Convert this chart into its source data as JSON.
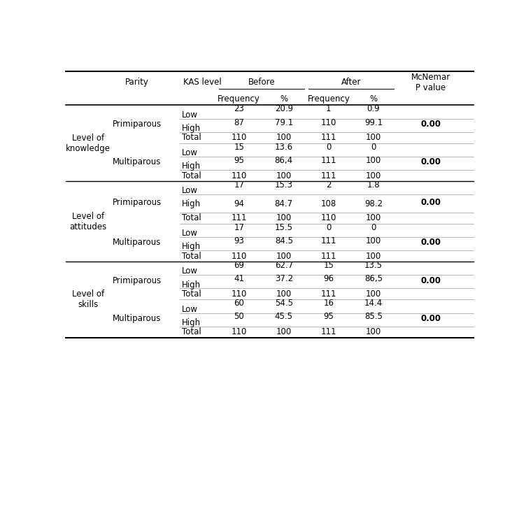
{
  "sections": [
    {
      "label": "Level of\nknowledge",
      "groups": [
        {
          "parity": "Primiparous",
          "rows": [
            {
              "kas": "Low",
              "bf": "23",
              "bpct": "20.9",
              "af": "1",
              "apct": "0.9",
              "style": "data_above_label"
            },
            {
              "kas": "High",
              "bf": "87",
              "bpct": "79.1",
              "af": "110",
              "apct": "99.1",
              "style": "data_above_label",
              "mcnemar": "0.00"
            },
            {
              "kas": "Total",
              "bf": "110",
              "bpct": "100",
              "af": "111",
              "apct": "100",
              "style": "total"
            }
          ]
        },
        {
          "parity": "Multiparous",
          "rows": [
            {
              "kas": "Low",
              "bf": "15",
              "bpct": "13.6",
              "af": "0",
              "apct": "0",
              "style": "data_above_label"
            },
            {
              "kas": "High",
              "bf": "95",
              "bpct": "86,4",
              "af": "111",
              "apct": "100",
              "style": "data_above_label",
              "mcnemar": "0.00"
            },
            {
              "kas": "Total",
              "bf": "110",
              "bpct": "100",
              "af": "111",
              "apct": "100",
              "style": "total"
            }
          ]
        }
      ]
    },
    {
      "label": "Level of\nattitudes",
      "groups": [
        {
          "parity": "Primiparous",
          "rows": [
            {
              "kas": "Low",
              "bf": "17",
              "bpct": "15.3",
              "af": "2",
              "apct": "1.8",
              "style": "data_above_label"
            },
            {
              "kas": "High",
              "bf": "94",
              "bpct": "84.7",
              "af": "108",
              "apct": "98.2",
              "style": "data_inline",
              "mcnemar": "0.00"
            },
            {
              "kas": "Total",
              "bf": "111",
              "bpct": "100",
              "af": "110",
              "apct": "100",
              "style": "total"
            }
          ]
        },
        {
          "parity": "Multiparous",
          "rows": [
            {
              "kas": "Low",
              "bf": "17",
              "bpct": "15.5",
              "af": "0",
              "apct": "0",
              "style": "data_above_label"
            },
            {
              "kas": "High",
              "bf": "93",
              "bpct": "84.5",
              "af": "111",
              "apct": "100",
              "style": "data_above_label",
              "mcnemar": "0.00"
            },
            {
              "kas": "Total",
              "bf": "110",
              "bpct": "100",
              "af": "111",
              "apct": "100",
              "style": "total"
            }
          ]
        }
      ]
    },
    {
      "label": "Level of\nskills",
      "groups": [
        {
          "parity": "Primiparous",
          "rows": [
            {
              "kas": "Low",
              "bf": "69",
              "bpct": "62.7",
              "af": "15",
              "apct": "13.5",
              "style": "data_above_label"
            },
            {
              "kas": "High",
              "bf": "41",
              "bpct": "37.2",
              "af": "96",
              "apct": "86,5",
              "style": "data_above_label",
              "mcnemar": "0.00"
            },
            {
              "kas": "Total",
              "bf": "110",
              "bpct": "100",
              "af": "111",
              "apct": "100",
              "style": "total"
            }
          ]
        },
        {
          "parity": "Multiparous",
          "rows": [
            {
              "kas": "Low",
              "bf": "60",
              "bpct": "54.5",
              "af": "16",
              "apct": "14.4",
              "style": "data_above_label"
            },
            {
              "kas": "High",
              "bf": "50",
              "bpct": "45.5",
              "af": "95",
              "apct": "85.5",
              "style": "data_above_label",
              "mcnemar": "0.00"
            },
            {
              "kas": "Total",
              "bf": "110",
              "bpct": "100",
              "af": "111",
              "apct": "100",
              "style": "total"
            }
          ]
        }
      ]
    }
  ],
  "font_size": 8.5
}
